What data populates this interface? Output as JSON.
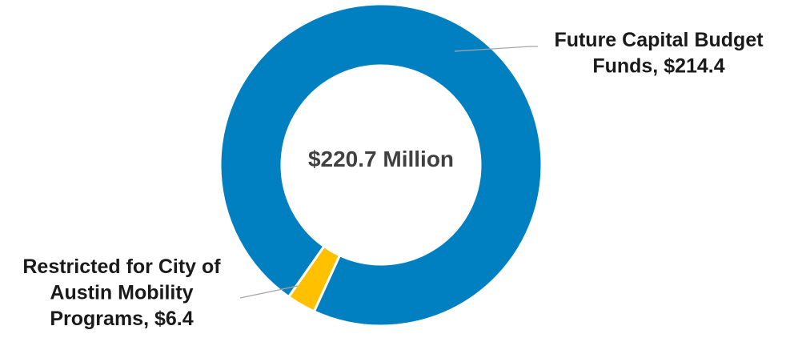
{
  "chart_data": {
    "type": "pie",
    "variant": "donut",
    "center_label": "$220.7 Million",
    "slices": [
      {
        "name": "Future Capital Budget Funds",
        "value": 214.4,
        "label_lines": [
          "Future Capital Budget",
          "Funds, $214.4"
        ],
        "color": "#0080C0"
      },
      {
        "name": "Restricted for City of Austin Mobility Programs",
        "value": 6.4,
        "label_lines": [
          "Restricted for City of",
          "Austin Mobility",
          "Programs, $6.4"
        ],
        "color": "#FFC000"
      }
    ],
    "legend": "none",
    "colors": {
      "separator": "#ffffff",
      "leader_line": "#A6A6A6",
      "label_text": "#1A1A1A",
      "center_text": "#404040"
    }
  }
}
